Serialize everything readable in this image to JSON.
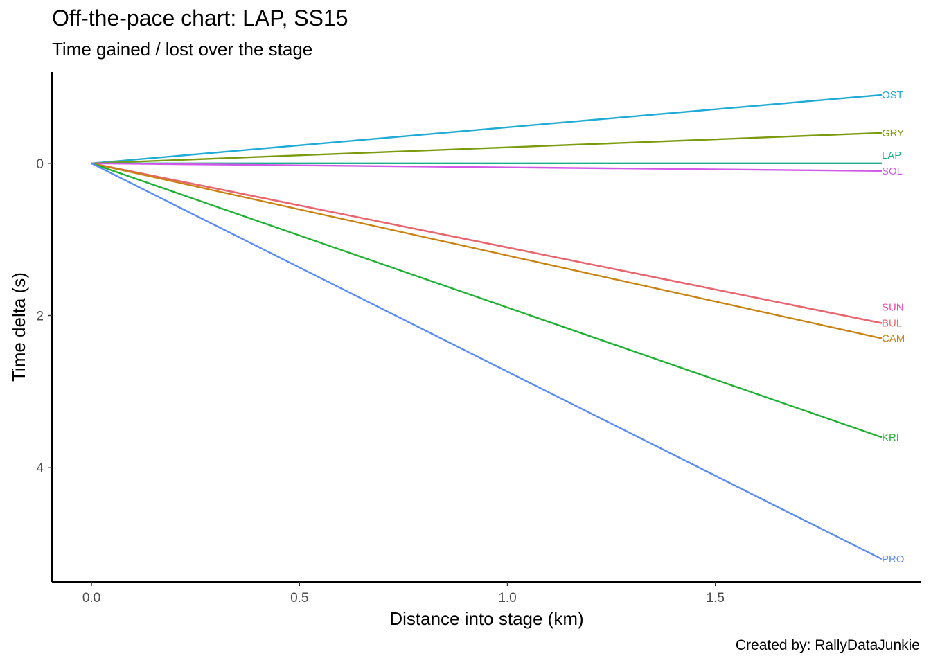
{
  "chart_data": {
    "type": "line",
    "title": "Off-the-pace chart: LAP, SS15",
    "subtitle": "Time gained / lost over the stage",
    "caption": "Created by: RallyDataJunkie",
    "xlabel": "Distance into stage (km)",
    "ylabel": "Time delta (s)",
    "xlim": [
      -0.095,
      1.995
    ],
    "ylim": [
      -1.2,
      5.5
    ],
    "y_reversed": true,
    "grid": false,
    "legend": "none",
    "x_ticks": [
      {
        "value": 0.0,
        "label": "0.0"
      },
      {
        "value": 0.5,
        "label": "0.5"
      },
      {
        "value": 1.0,
        "label": "1.0"
      },
      {
        "value": 1.5,
        "label": "1.5"
      }
    ],
    "y_ticks": [
      {
        "value": 0,
        "label": "0"
      },
      {
        "value": 2,
        "label": "2"
      },
      {
        "value": 4,
        "label": "4"
      }
    ],
    "series": [
      {
        "name": "OST",
        "color": "#1fabd6",
        "x": [
          0,
          1.9
        ],
        "y": [
          0,
          -0.9
        ]
      },
      {
        "name": "GRY",
        "color": "#7c9a0d",
        "x": [
          0,
          1.9
        ],
        "y": [
          0,
          -0.4
        ]
      },
      {
        "name": "LAP",
        "color": "#1aaf8a",
        "x": [
          0,
          1.9
        ],
        "y": [
          0,
          0.0
        ]
      },
      {
        "name": "SOL",
        "color": "#d159e8",
        "x": [
          0,
          1.9
        ],
        "y": [
          0,
          0.1
        ]
      },
      {
        "name": "SUN",
        "color": "#f246b5",
        "x": [
          0,
          1.9
        ],
        "y": [
          0,
          2.1
        ]
      },
      {
        "name": "BUL",
        "color": "#e8676b",
        "x": [
          0,
          1.9
        ],
        "y": [
          0,
          2.1
        ]
      },
      {
        "name": "CAM",
        "color": "#c98210",
        "x": [
          0,
          1.9
        ],
        "y": [
          0,
          2.3
        ]
      },
      {
        "name": "KRI",
        "color": "#1fb232",
        "x": [
          0,
          1.9
        ],
        "y": [
          0,
          3.6
        ]
      },
      {
        "name": "PRO",
        "color": "#5a8cf5",
        "x": [
          0,
          1.9
        ],
        "y": [
          0,
          5.2
        ]
      }
    ]
  }
}
